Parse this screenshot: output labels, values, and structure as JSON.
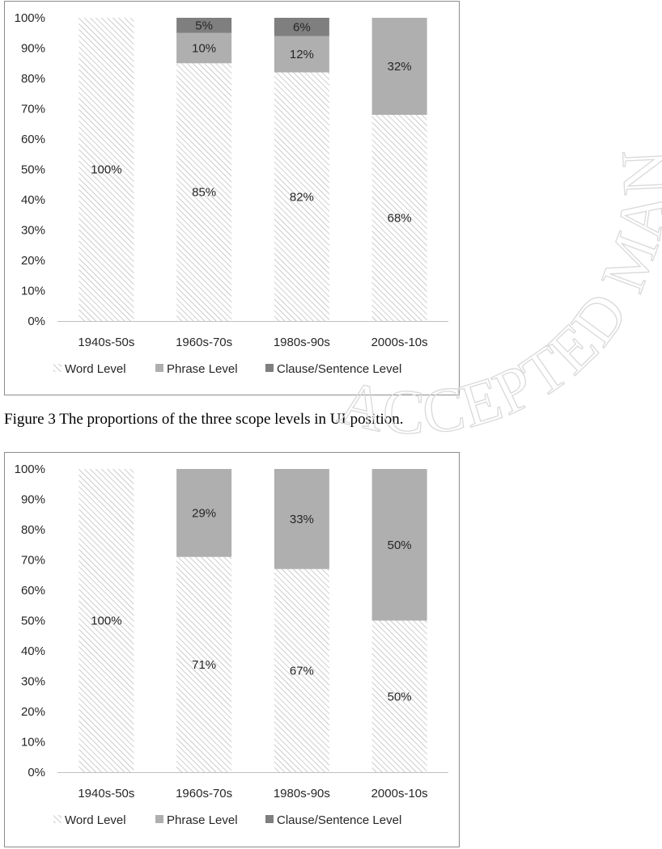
{
  "caption": "Figure 3 The proportions of the three scope levels in UI position.",
  "watermark": "ACCEPTED MANUSCRIPT",
  "colors": {
    "word": "#ffffff",
    "word_hatch": "#a6a6a6",
    "phrase": "#afafaf",
    "clause": "#7f7f7f"
  },
  "chart_data": [
    {
      "type": "bar",
      "stacked": true,
      "categories": [
        "1940s-50s",
        "1960s-70s",
        "1980s-90s",
        "2000s-10s"
      ],
      "series": [
        {
          "name": "Word Level",
          "values": [
            100,
            85,
            82,
            68
          ],
          "labels": [
            "100%",
            "85%",
            "82%",
            "68%"
          ]
        },
        {
          "name": "Phrase Level",
          "values": [
            0,
            10,
            12,
            32
          ],
          "labels": [
            "",
            "10%",
            "12%",
            "32%"
          ]
        },
        {
          "name": "Clause/Sentence Level",
          "values": [
            0,
            5,
            6,
            0
          ],
          "labels": [
            "",
            "5%",
            "6%",
            ""
          ]
        }
      ],
      "ylim": [
        0,
        100
      ],
      "yticks": [
        "0%",
        "10%",
        "20%",
        "30%",
        "40%",
        "50%",
        "60%",
        "70%",
        "80%",
        "90%",
        "100%"
      ],
      "legend": "bottom",
      "grid": false
    },
    {
      "type": "bar",
      "stacked": true,
      "categories": [
        "1940s-50s",
        "1960s-70s",
        "1980s-90s",
        "2000s-10s"
      ],
      "series": [
        {
          "name": "Word Level",
          "values": [
            100,
            71,
            67,
            50
          ],
          "labels": [
            "100%",
            "71%",
            "67%",
            "50%"
          ]
        },
        {
          "name": "Phrase Level",
          "values": [
            0,
            29,
            33,
            50
          ],
          "labels": [
            "",
            "29%",
            "33%",
            "50%"
          ]
        },
        {
          "name": "Clause/Sentence Level",
          "values": [
            0,
            0,
            0,
            0
          ],
          "labels": [
            "",
            "",
            "",
            ""
          ]
        }
      ],
      "ylim": [
        0,
        100
      ],
      "yticks": [
        "0%",
        "10%",
        "20%",
        "30%",
        "40%",
        "50%",
        "60%",
        "70%",
        "80%",
        "90%",
        "100%"
      ],
      "legend": "bottom",
      "grid": false
    }
  ]
}
